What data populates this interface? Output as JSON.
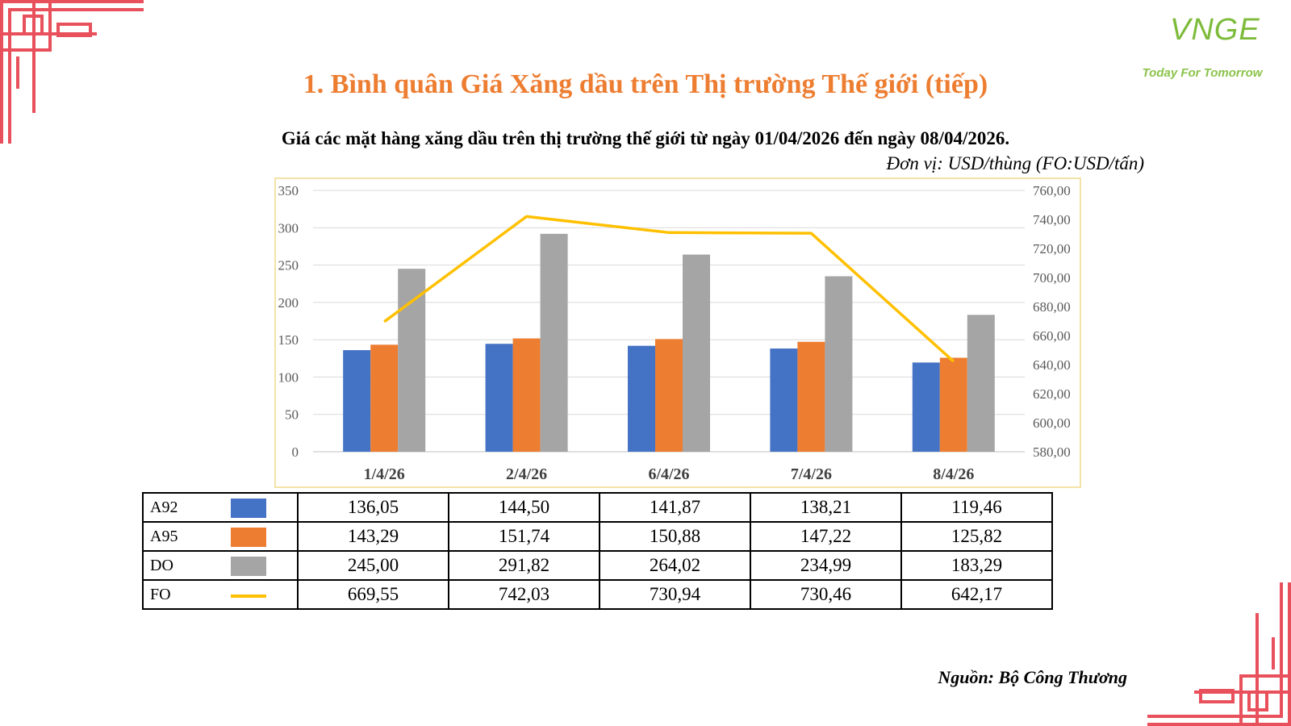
{
  "header": {
    "title": "1. Bình quân Giá Xăng dầu trên Thị trường Thế giới (tiếp)",
    "logo_text": "VNGE",
    "logo_tagline": "Today For Tomorrow"
  },
  "chart_data": {
    "type": "bar",
    "title": "Giá các mặt hàng xăng dầu trên thị trường thế giới từ ngày 01/04/2026 đến ngày 08/04/2026.",
    "unit": "Đơn vị: USD/thùng (FO:USD/tấn)",
    "categories": [
      "1/4/26",
      "2/4/26",
      "6/4/26",
      "7/4/26",
      "8/4/26"
    ],
    "series": [
      {
        "name": "A92",
        "kind": "bar",
        "axis": "left",
        "color": "#4472c4",
        "values": [
          136.05,
          144.5,
          141.87,
          138.21,
          119.46
        ],
        "labels": [
          "136,05",
          "144,50",
          "141,87",
          "138,21",
          "119,46"
        ]
      },
      {
        "name": "A95",
        "kind": "bar",
        "axis": "left",
        "color": "#ed7d31",
        "values": [
          143.29,
          151.74,
          150.88,
          147.22,
          125.82
        ],
        "labels": [
          "143,29",
          "151,74",
          "150,88",
          "147,22",
          "125,82"
        ]
      },
      {
        "name": "DO",
        "kind": "bar",
        "axis": "left",
        "color": "#a5a5a5",
        "values": [
          245.0,
          291.82,
          264.02,
          234.99,
          183.29
        ],
        "labels": [
          "245,00",
          "291,82",
          "264,02",
          "234,99",
          "183,29"
        ]
      },
      {
        "name": "FO",
        "kind": "line",
        "axis": "right",
        "color": "#ffc000",
        "values": [
          669.55,
          742.03,
          730.94,
          730.46,
          642.17
        ],
        "labels": [
          "669,55",
          "742,03",
          "730,94",
          "730,46",
          "642,17"
        ]
      }
    ],
    "y_left": {
      "range": [
        0,
        350
      ],
      "ticks": [
        0,
        50,
        100,
        150,
        200,
        250,
        300,
        350
      ],
      "tick_labels": [
        "0",
        "50",
        "100",
        "150",
        "200",
        "250",
        "300",
        "350"
      ]
    },
    "y_right": {
      "range": [
        580,
        760
      ],
      "ticks": [
        580,
        600,
        620,
        640,
        660,
        680,
        700,
        720,
        740,
        760
      ],
      "tick_labels": [
        "580,00",
        "600,00",
        "620,00",
        "640,00",
        "660,00",
        "680,00",
        "700,00",
        "720,00",
        "740,00",
        "760,00"
      ]
    },
    "grid": true,
    "legend": "data-table-below"
  },
  "footer": {
    "source": "Nguồn: Bộ Công Thương"
  },
  "colors": {
    "title": "#ed7d31",
    "decor": "#e8505b",
    "chart_border": "#f4e3a7"
  }
}
